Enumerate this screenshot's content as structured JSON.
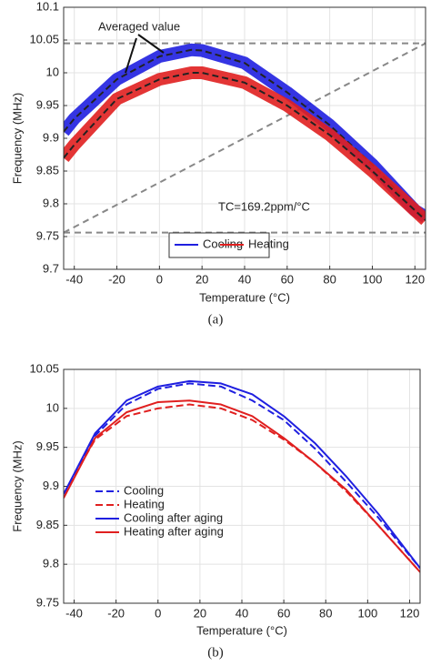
{
  "chart_data": [
    {
      "type": "line",
      "caption": "(a)",
      "xlabel": "Temperature (°C)",
      "ylabel": "Frequency (MHz)",
      "xlim": [
        -45,
        125
      ],
      "xticks": [
        -40,
        -20,
        0,
        20,
        40,
        60,
        80,
        100,
        120
      ],
      "ylim": [
        9.7,
        10.1
      ],
      "yticks": [
        9.7,
        9.75,
        9.8,
        9.85,
        9.9,
        9.95,
        10,
        10.05,
        10.1
      ],
      "grid": true,
      "x": [
        -45,
        -40,
        -20,
        0,
        15,
        20,
        40,
        60,
        80,
        100,
        120,
        125
      ],
      "series": [
        {
          "name": "Cooling",
          "color": "#1f1fe0",
          "values": [
            9.91,
            9.93,
            9.99,
            10.025,
            10.035,
            10.034,
            10.015,
            9.97,
            9.92,
            9.86,
            9.79,
            9.78
          ]
        },
        {
          "name": "Heating",
          "color": "#e01f1f",
          "values": [
            9.87,
            9.89,
            9.96,
            9.99,
            10.0,
            10.0,
            9.985,
            9.95,
            9.905,
            9.85,
            9.79,
            9.775
          ]
        }
      ],
      "average_color": "#222222",
      "reference_lines": [
        {
          "x": [
            -45,
            125
          ],
          "y": [
            10.045,
            10.045
          ]
        },
        {
          "x": [
            -45,
            125
          ],
          "y": [
            9.756,
            9.756
          ]
        },
        {
          "x": [
            -45,
            125
          ],
          "y": [
            9.756,
            10.045
          ]
        }
      ],
      "annotations": [
        "Averaged value",
        "TC=169.2ppm/°C"
      ]
    },
    {
      "type": "line",
      "caption": "(b)",
      "xlabel": "Temperature (°C)",
      "ylabel": "Frequency (MHz)",
      "xlim": [
        -45,
        125
      ],
      "xticks": [
        -40,
        -20,
        0,
        20,
        40,
        60,
        80,
        100,
        120
      ],
      "ylim": [
        9.75,
        10.05
      ],
      "yticks": [
        9.75,
        9.8,
        9.85,
        9.9,
        9.95,
        10,
        10.05
      ],
      "grid": true,
      "x": [
        -45,
        -30,
        -15,
        0,
        15,
        30,
        45,
        60,
        75,
        90,
        105,
        125
      ],
      "series": [
        {
          "name": "Cooling",
          "color": "#1f1fe0",
          "dash": true,
          "values": [
            9.89,
            9.965,
            10.005,
            10.025,
            10.032,
            10.028,
            10.01,
            9.985,
            9.948,
            9.905,
            9.86,
            9.795
          ]
        },
        {
          "name": "Heating",
          "color": "#e01f1f",
          "dash": true,
          "values": [
            9.89,
            9.96,
            9.99,
            10.0,
            10.005,
            10.0,
            9.985,
            9.96,
            9.93,
            9.893,
            9.85,
            9.79
          ]
        },
        {
          "name": "Cooling after aging",
          "color": "#1f1fe0",
          "dash": false,
          "values": [
            9.89,
            9.968,
            10.01,
            10.028,
            10.035,
            10.032,
            10.018,
            9.99,
            9.955,
            9.912,
            9.865,
            9.795
          ]
        },
        {
          "name": "Heating after aging",
          "color": "#e01f1f",
          "dash": false,
          "values": [
            9.885,
            9.962,
            9.995,
            10.008,
            10.01,
            10.005,
            9.99,
            9.962,
            9.93,
            9.895,
            9.85,
            9.79
          ]
        }
      ]
    }
  ]
}
